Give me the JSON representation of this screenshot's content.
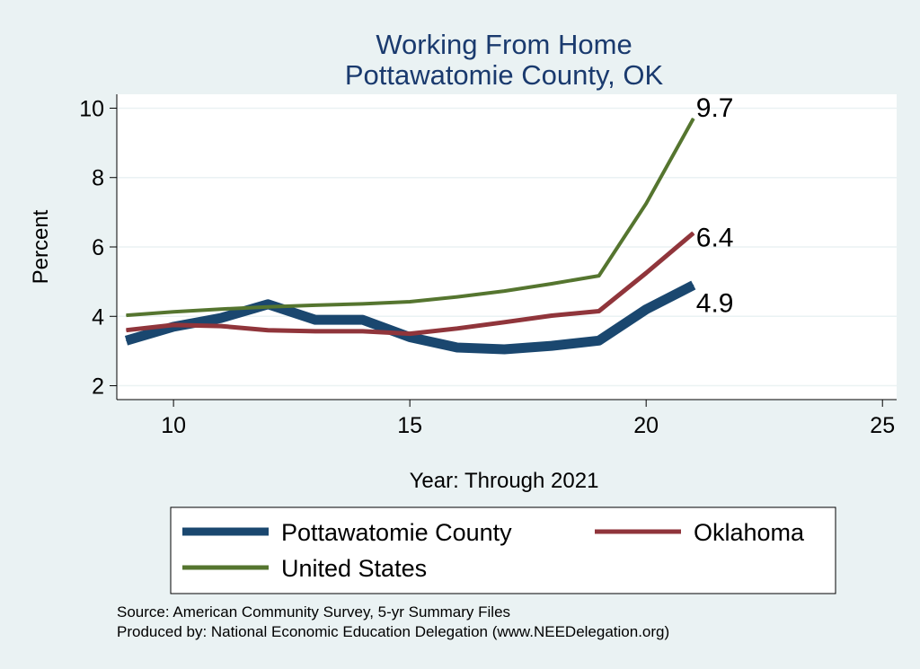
{
  "chart_data": {
    "type": "line",
    "title": "Working From Home",
    "subtitle": "Pottawatomie County, OK",
    "xlabel": "Year: Through 2021",
    "ylabel": "Percent",
    "xlim": [
      8.8,
      25.3
    ],
    "ylim": [
      1.6,
      10.4
    ],
    "xticks": [
      10,
      15,
      20,
      25
    ],
    "yticks": [
      2,
      4,
      6,
      8,
      10
    ],
    "grid": true,
    "legend_position": "bottom",
    "series": [
      {
        "name": "Pottawatomie County",
        "color": "#1a476f",
        "x": [
          9,
          10,
          11,
          12,
          13,
          14,
          15,
          16,
          17,
          18,
          19,
          20,
          21
        ],
        "y": [
          3.3,
          3.7,
          3.95,
          4.35,
          3.9,
          3.9,
          3.4,
          3.1,
          3.05,
          3.15,
          3.3,
          4.2,
          4.9
        ],
        "end_label": "4.9"
      },
      {
        "name": "Oklahoma",
        "color": "#90353b",
        "x": [
          9,
          10,
          11,
          12,
          13,
          14,
          15,
          16,
          17,
          18,
          19,
          20,
          21
        ],
        "y": [
          3.6,
          3.75,
          3.72,
          3.6,
          3.57,
          3.57,
          3.5,
          3.65,
          3.83,
          4.02,
          4.15,
          5.25,
          6.4
        ],
        "end_label": "6.4"
      },
      {
        "name": "United States",
        "color": "#55752f",
        "x": [
          9,
          10,
          11,
          12,
          13,
          14,
          15,
          16,
          17,
          18,
          19,
          20,
          21
        ],
        "y": [
          4.03,
          4.13,
          4.21,
          4.27,
          4.32,
          4.36,
          4.42,
          4.56,
          4.73,
          4.94,
          5.17,
          7.25,
          9.7
        ],
        "end_label": "9.7"
      }
    ],
    "notes": [
      "Source: American Community Survey, 5-yr Summary Files",
      "Produced by: National Economic Education Delegation (www.NEEDelegation.org)"
    ]
  }
}
